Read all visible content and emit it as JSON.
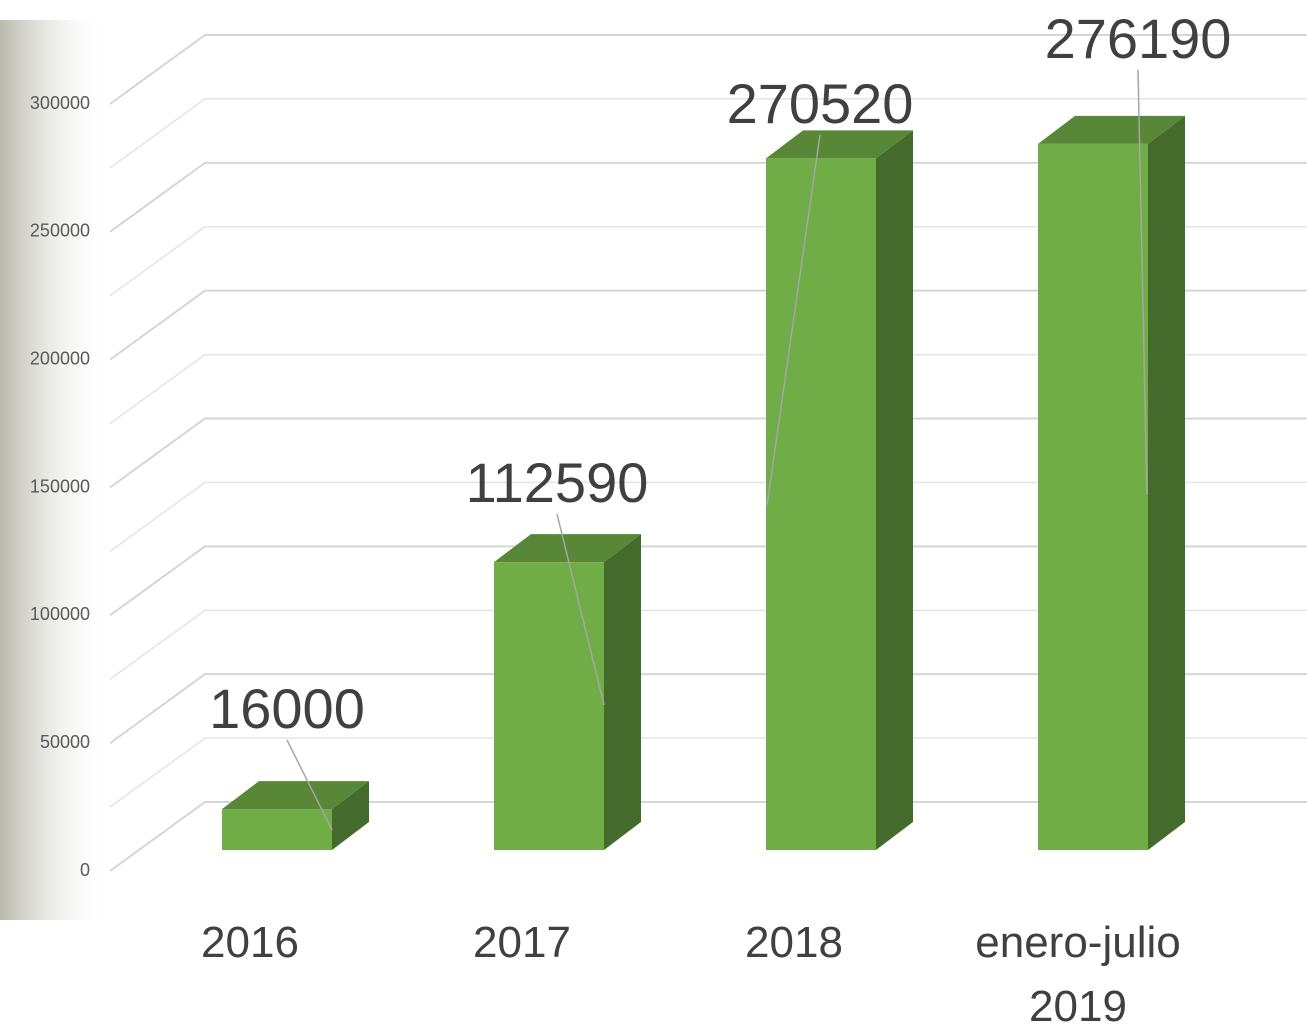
{
  "chart_data": {
    "type": "bar3d",
    "categories": [
      "2016",
      "2017",
      "2018",
      "enero-julio 2019"
    ],
    "values": [
      16000,
      112590,
      270520,
      276190
    ],
    "color": "#70ad47",
    "ylim": [
      0,
      300000
    ],
    "yticks": [
      0,
      50000,
      100000,
      150000,
      200000,
      250000,
      300000
    ],
    "grid": true
  }
}
